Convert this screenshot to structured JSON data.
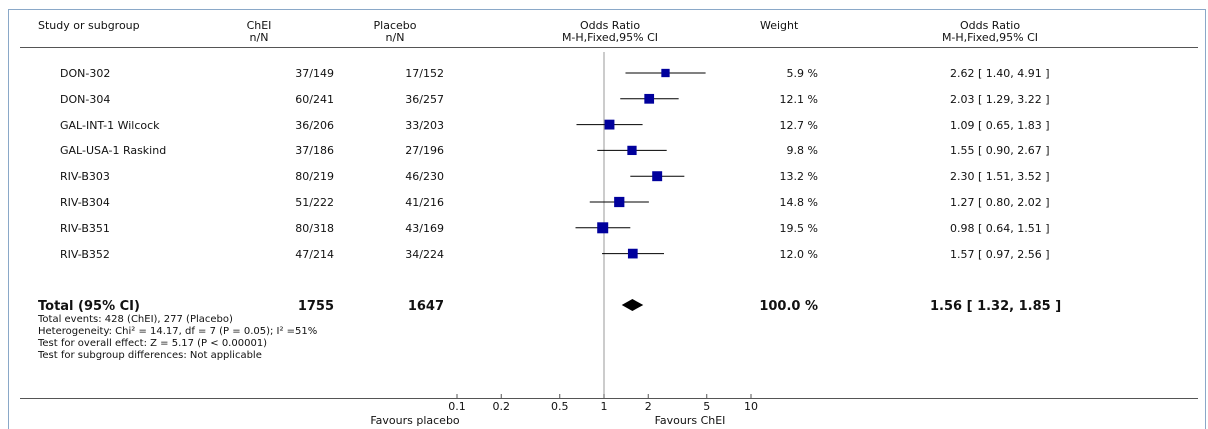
{
  "headers": {
    "study": "Study or subgroup",
    "treat": "ChEI",
    "treat_sub": "n/N",
    "control": "Placebo",
    "control_sub": "n/N",
    "or": "Odds Ratio",
    "or_sub": "M-H,Fixed,95% CI",
    "weight": "Weight",
    "or2": "Odds Ratio",
    "or2_sub": "M-H,Fixed,95% CI"
  },
  "chart_data": {
    "type": "forest",
    "x_scale": "log",
    "xlim": [
      0.1,
      10
    ],
    "x_ticks": [
      "0.1",
      "0.2",
      "0.5",
      "1",
      "2",
      "5",
      "10"
    ],
    "x_tick_values": [
      0.1,
      0.2,
      0.5,
      1,
      2,
      5,
      10
    ],
    "xlabel_left": "Favours placebo",
    "xlabel_right": "Favours ChEI",
    "studies": [
      {
        "name": "DON-302",
        "treat": "37/149",
        "control": "17/152",
        "or": 2.62,
        "lo": 1.4,
        "hi": 4.91,
        "weight": 5.9,
        "weight_text": "5.9 %",
        "ci_text": "2.62 [ 1.40, 4.91 ]"
      },
      {
        "name": "DON-304",
        "treat": "60/241",
        "control": "36/257",
        "or": 2.03,
        "lo": 1.29,
        "hi": 3.22,
        "weight": 12.1,
        "weight_text": "12.1 %",
        "ci_text": "2.03 [ 1.29, 3.22 ]"
      },
      {
        "name": "GAL-INT-1 Wilcock",
        "treat": "36/206",
        "control": "33/203",
        "or": 1.09,
        "lo": 0.65,
        "hi": 1.83,
        "weight": 12.7,
        "weight_text": "12.7 %",
        "ci_text": "1.09 [ 0.65, 1.83 ]"
      },
      {
        "name": "GAL-USA-1 Raskind",
        "treat": "37/186",
        "control": "27/196",
        "or": 1.55,
        "lo": 0.9,
        "hi": 2.67,
        "weight": 9.8,
        "weight_text": "9.8 %",
        "ci_text": "1.55 [ 0.90, 2.67 ]"
      },
      {
        "name": "RIV-B303",
        "treat": "80/219",
        "control": "46/230",
        "or": 2.3,
        "lo": 1.51,
        "hi": 3.52,
        "weight": 13.2,
        "weight_text": "13.2 %",
        "ci_text": "2.30 [ 1.51, 3.52 ]"
      },
      {
        "name": "RIV-B304",
        "treat": "51/222",
        "control": "41/216",
        "or": 1.27,
        "lo": 0.8,
        "hi": 2.02,
        "weight": 14.8,
        "weight_text": "14.8 %",
        "ci_text": "1.27 [ 0.80, 2.02 ]"
      },
      {
        "name": "RIV-B351",
        "treat": "80/318",
        "control": "43/169",
        "or": 0.98,
        "lo": 0.64,
        "hi": 1.51,
        "weight": 19.5,
        "weight_text": "19.5 %",
        "ci_text": "0.98 [ 0.64, 1.51 ]"
      },
      {
        "name": "RIV-B352",
        "treat": "47/214",
        "control": "34/224",
        "or": 1.57,
        "lo": 0.97,
        "hi": 2.56,
        "weight": 12.0,
        "weight_text": "12.0 %",
        "ci_text": "1.57 [ 0.97, 2.56 ]"
      }
    ],
    "total": {
      "or": 1.56,
      "lo": 1.32,
      "hi": 1.85
    },
    "marker_color": "#00009c"
  },
  "total": {
    "label": "Total (95% CI)",
    "treat": "1755",
    "control": "1647",
    "weight": "100.0 %",
    "ci": "1.56 [ 1.32, 1.85 ]"
  },
  "notes": {
    "events": "Total events: 428 (ChEI), 277 (Placebo)",
    "heterogeneity": "Heterogeneity: Chi² = 14.17, df = 7 (P = 0.05); I² =51%",
    "overall": "Test for overall effect: Z = 5.17 (P < 0.00001)",
    "subgroup": "Test for subgroup differences: Not applicable"
  }
}
